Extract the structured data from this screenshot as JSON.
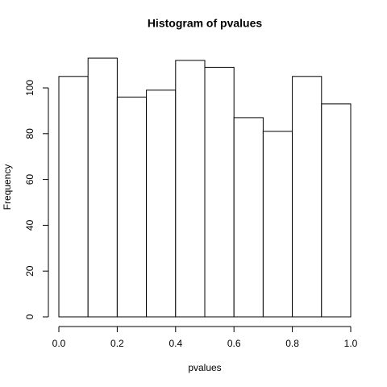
{
  "chart_data": {
    "type": "histogram",
    "title": "Histogram of pvalues",
    "xlabel": "pvalues",
    "ylabel": "Frequency",
    "bins": [
      0,
      0.1,
      0.2,
      0.3,
      0.4,
      0.5,
      0.6,
      0.7,
      0.8,
      0.9,
      1
    ],
    "values": [
      105,
      113,
      96,
      99,
      112,
      109,
      87,
      81,
      105,
      93
    ],
    "color": "#ffffff",
    "xlim": [
      0,
      1
    ],
    "xticks": [
      {
        "value": 0,
        "label": "0.0"
      },
      0.2,
      0.4,
      0.6,
      0.8,
      {
        "value": 1,
        "label": "1.0"
      }
    ],
    "ylim": [
      0,
      120
    ],
    "yticks": [
      0,
      20,
      40,
      60,
      80,
      100
    ]
  }
}
